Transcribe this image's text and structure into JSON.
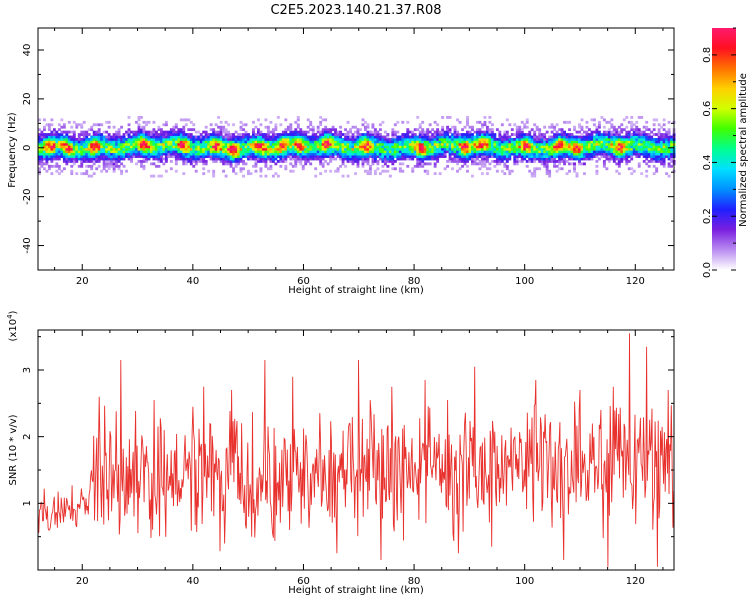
{
  "title": "C2E5.2023.140.21.37.R08",
  "colors": {
    "snr_line": "#e8302c",
    "axis": "#000000",
    "background": "#ffffff"
  },
  "chart_data": [
    {
      "type": "heatmap",
      "id": "spectrogram",
      "xlabel": "Height of straight line (km)",
      "ylabel": "Frequency (Hz)",
      "xlim": [
        12,
        127
      ],
      "ylim": [
        -50,
        49
      ],
      "xticks": [
        20,
        40,
        60,
        80,
        100,
        120
      ],
      "yticks": [
        40,
        20,
        0,
        -20,
        -40
      ],
      "ytick_labels": [
        "40",
        "20",
        "0",
        "-20",
        "-40"
      ],
      "grid": false,
      "band": {
        "center_frequency_hz": 0,
        "core_halfwidth_hz": 2.5,
        "outer_halfwidth_hz": 8,
        "strong_peak_heights_km": [
          14,
          17,
          22,
          31,
          38,
          44,
          47,
          52,
          56,
          59,
          64,
          71,
          81,
          89,
          92,
          100,
          106,
          109,
          117
        ]
      },
      "colorbar": {
        "label": "Normalized spectral amplitude",
        "range": [
          0.0,
          0.9
        ],
        "ticks": [
          0.0,
          0.2,
          0.4,
          0.6,
          0.8
        ],
        "tick_labels": [
          "0.0",
          "0.2",
          "0.4",
          "0.6",
          "0.8"
        ],
        "colors": [
          "#ffffff",
          "#b98cf0",
          "#7a1fe0",
          "#2020ff",
          "#0090ff",
          "#00e0ff",
          "#00ff90",
          "#40ff00",
          "#d0ff00",
          "#ffd000",
          "#ff7000",
          "#ff1020",
          "#ff1a6e"
        ]
      }
    },
    {
      "type": "line",
      "id": "snr",
      "xlabel": "Height of straight line (km)",
      "ylabel": "SNR (10 * v/v)",
      "scale_label": "(x10",
      "scale_exponent": "4",
      "scale_suffix": ")",
      "xlim": [
        12,
        127
      ],
      "ylim": [
        0,
        3.6
      ],
      "xticks": [
        20,
        40,
        60,
        80,
        100,
        120
      ],
      "yticks": [
        1,
        2,
        3
      ],
      "ytick_labels": [
        "1",
        "2",
        "3"
      ],
      "grid": false,
      "series": [
        {
          "color": "#e8302c",
          "baseline": [
            [
              12,
              0.85
            ],
            [
              21,
              0.95
            ],
            [
              22,
              1.5
            ],
            [
              30,
              1.45
            ],
            [
              50,
              1.3
            ],
            [
              60,
              1.35
            ],
            [
              80,
              1.45
            ],
            [
              100,
              1.6
            ],
            [
              127,
              1.55
            ]
          ],
          "peaks": [
            [
              23,
              2.6
            ],
            [
              27,
              3.15
            ],
            [
              33,
              2.55
            ],
            [
              40,
              2.45
            ],
            [
              42,
              2.75
            ],
            [
              47,
              2.7
            ],
            [
              53,
              3.15
            ],
            [
              58,
              2.9
            ],
            [
              70,
              3.15
            ],
            [
              72,
              2.55
            ],
            [
              76,
              2.75
            ],
            [
              82,
              2.85
            ],
            [
              86,
              2.55
            ],
            [
              91,
              3.05
            ],
            [
              102,
              2.85
            ],
            [
              110,
              2.7
            ],
            [
              116,
              2.75
            ],
            [
              119,
              3.55
            ],
            [
              122,
              3.35
            ],
            [
              126,
              2.7
            ]
          ],
          "troughs": [
            [
              66,
              0.25
            ],
            [
              74,
              0.15
            ],
            [
              88,
              0.25
            ],
            [
              94,
              0.35
            ],
            [
              107,
              0.15
            ],
            [
              115,
              0.05
            ],
            [
              124,
              0.05
            ]
          ]
        }
      ]
    }
  ]
}
